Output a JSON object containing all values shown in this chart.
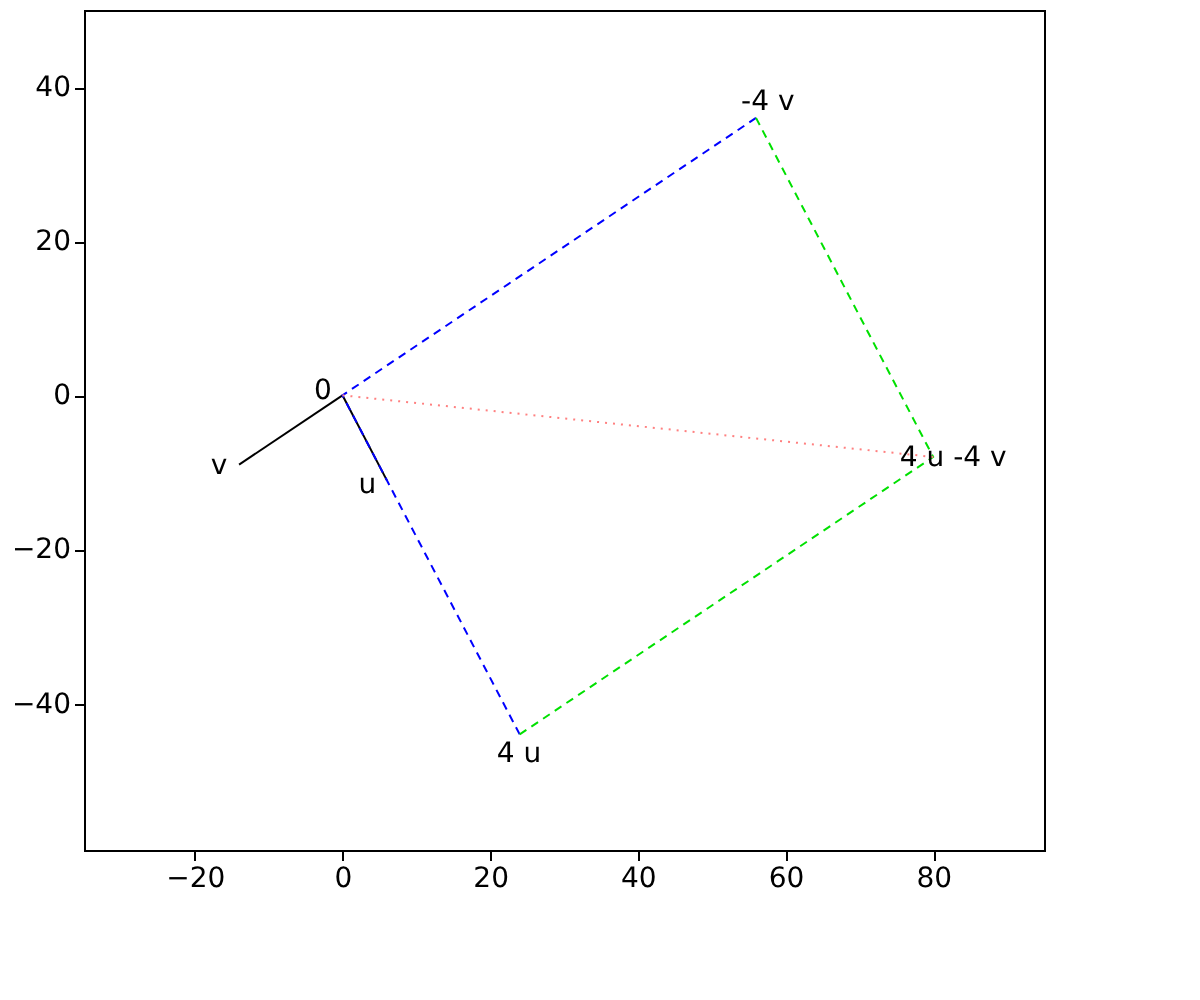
{
  "chart_data": {
    "type": "line",
    "xlim": [
      -35,
      95
    ],
    "ylim": [
      -59,
      50
    ],
    "xticks": [
      -20,
      0,
      20,
      40,
      60,
      80
    ],
    "yticks": [
      -40,
      -20,
      0,
      20,
      40
    ],
    "grid": false,
    "marker": "none",
    "series": [
      {
        "color": "#000000",
        "line_style": "solid",
        "x": [
          0,
          -14
        ],
        "values": [
          0,
          -9
        ]
      },
      {
        "color": "#000000",
        "line_style": "solid",
        "x": [
          0,
          6
        ],
        "values": [
          0,
          -11
        ]
      },
      {
        "color": "#0000ff",
        "line_style": "dashed",
        "x": [
          56,
          0,
          24
        ],
        "values": [
          36,
          0,
          -44
        ]
      },
      {
        "color": "#00e000",
        "line_style": "dashed",
        "x": [
          56,
          80,
          24
        ],
        "values": [
          36,
          -8,
          -44
        ]
      },
      {
        "color": "#ff8080",
        "line_style": "dotted",
        "x": [
          0,
          80
        ],
        "values": [
          0,
          -8
        ]
      }
    ],
    "annotations": [
      {
        "text": "0",
        "x": 0,
        "y": 0
      },
      {
        "text": "v",
        "x": -14,
        "y": -9
      },
      {
        "text": "u",
        "x": 6,
        "y": -11
      },
      {
        "text": "4 u",
        "x": 24,
        "y": -44
      },
      {
        "text": "-4 v",
        "x": 56,
        "y": 36
      },
      {
        "text": "4 u -4 v",
        "x": 80,
        "y": -8
      }
    ]
  }
}
